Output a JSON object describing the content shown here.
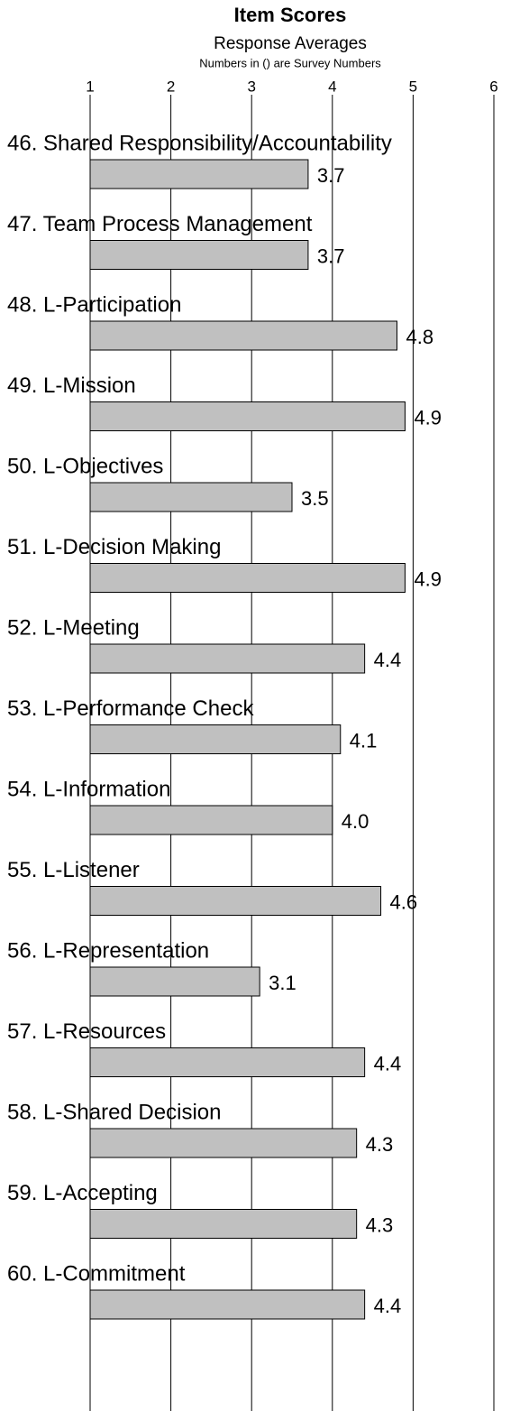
{
  "chart_data": {
    "type": "barh",
    "title": "Item Scores",
    "subtitle": "Response Averages",
    "note": "Numbers in () are Survey Numbers",
    "categories": [
      "46. Shared Responsibility/Accountability",
      "47. Team Process Management",
      "48. L-Participation",
      "49. L-Mission",
      "50. L-Objectives",
      "51. L-Decision Making",
      "52. L-Meeting",
      "53. L-Performance Check",
      "54. L-Information",
      "55. L-Listener",
      "56. L-Representation",
      "57. L-Resources",
      "58. L-Shared Decision",
      "59. L-Accepting",
      "60. L-Commitment"
    ],
    "values": [
      3.7,
      3.7,
      4.8,
      4.9,
      3.5,
      4.9,
      4.4,
      4.1,
      4.0,
      4.6,
      3.1,
      4.4,
      4.3,
      4.3,
      4.4
    ],
    "value_labels": [
      "3.7",
      "3.7",
      "4.8",
      "4.9",
      "3.5",
      "4.9",
      "4.4",
      "4.1",
      "4.0",
      "4.6",
      "3.1",
      "4.4",
      "4.3",
      "4.3",
      "4.4"
    ],
    "color": "#c0c0c0",
    "xlim": [
      1,
      6
    ],
    "xticks": [
      1,
      2,
      3,
      4,
      5,
      6
    ],
    "grid": true
  }
}
